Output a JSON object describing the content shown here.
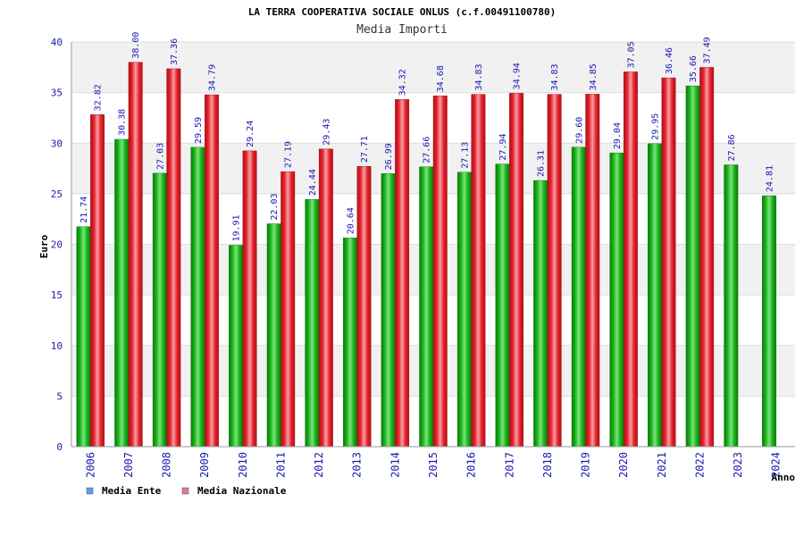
{
  "chart_data": {
    "type": "bar",
    "title": "LA TERRA COOPERATIVA SOCIALE ONLUS (c.f.00491100780)",
    "subtitle": "Media Importi",
    "ylabel": "Euro",
    "xlabel": "Anno",
    "ylim": [
      0,
      40
    ],
    "yticks": [
      0,
      5,
      10,
      15,
      20,
      25,
      30,
      35,
      40
    ],
    "grid": true,
    "legend_position": "bottom-left",
    "categories": [
      "2006",
      "2007",
      "2008",
      "2009",
      "2010",
      "2011",
      "2012",
      "2013",
      "2014",
      "2015",
      "2016",
      "2017",
      "2018",
      "2019",
      "2020",
      "2021",
      "2022",
      "2023",
      "2024"
    ],
    "series": [
      {
        "name": "Media Ente",
        "legend_color": "#5aa0ee",
        "bar_color": "#19b219",
        "values": [
          21.74,
          30.38,
          27.03,
          29.59,
          19.91,
          22.03,
          24.44,
          20.64,
          26.99,
          27.66,
          27.13,
          27.94,
          26.31,
          29.6,
          29.04,
          29.95,
          35.66,
          27.86,
          24.81
        ],
        "labels": [
          "21.74",
          "30.38",
          "27.03",
          "29.59",
          "19.91",
          "22.03",
          "24.44",
          "20.64",
          "26.99",
          "27.66",
          "27.13",
          "27.94",
          "26.31",
          "29.60",
          "29.04",
          "29.95",
          "35.66",
          "27.86",
          "24.81"
        ]
      },
      {
        "name": "Media Nazionale",
        "legend_color": "#e07aa8",
        "bar_color": "#e8202a",
        "values": [
          32.82,
          38.0,
          37.36,
          34.79,
          29.24,
          27.19,
          29.43,
          27.71,
          34.32,
          34.68,
          34.83,
          34.94,
          34.83,
          34.85,
          37.05,
          36.46,
          37.49,
          null,
          null
        ],
        "labels": [
          "32.82",
          "38.00",
          "37.36",
          "34.79",
          "29.24",
          "27.19",
          "29.43",
          "27.71",
          "34.32",
          "34.68",
          "34.83",
          "34.94",
          "34.83",
          "34.85",
          "37.05",
          "36.46",
          "37.49",
          "",
          ""
        ]
      }
    ]
  }
}
